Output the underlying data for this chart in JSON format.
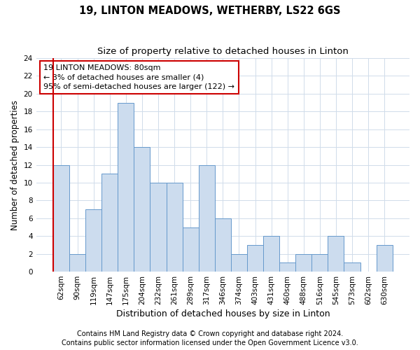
{
  "title1": "19, LINTON MEADOWS, WETHERBY, LS22 6GS",
  "title2": "Size of property relative to detached houses in Linton",
  "xlabel": "Distribution of detached houses by size in Linton",
  "ylabel": "Number of detached properties",
  "categories": [
    "62sqm",
    "90sqm",
    "119sqm",
    "147sqm",
    "175sqm",
    "204sqm",
    "232sqm",
    "261sqm",
    "289sqm",
    "317sqm",
    "346sqm",
    "374sqm",
    "403sqm",
    "431sqm",
    "460sqm",
    "488sqm",
    "516sqm",
    "545sqm",
    "573sqm",
    "602sqm",
    "630sqm"
  ],
  "values": [
    12,
    2,
    7,
    11,
    19,
    14,
    10,
    10,
    5,
    12,
    6,
    2,
    3,
    4,
    1,
    2,
    2,
    4,
    1,
    0,
    3
  ],
  "bar_color": "#ccdcee",
  "bar_edge_color": "#6699cc",
  "annotation_line1": "19 LINTON MEADOWS: 80sqm",
  "annotation_line2": "← 3% of detached houses are smaller (4)",
  "annotation_line3": "95% of semi-detached houses are larger (122) →",
  "annotation_box_color": "#ffffff",
  "annotation_box_edge_color": "#cc0000",
  "vline_color": "#cc0000",
  "ylim": [
    0,
    24
  ],
  "yticks": [
    0,
    2,
    4,
    6,
    8,
    10,
    12,
    14,
    16,
    18,
    20,
    22,
    24
  ],
  "footer1": "Contains HM Land Registry data © Crown copyright and database right 2024.",
  "footer2": "Contains public sector information licensed under the Open Government Licence v3.0.",
  "bg_color": "#ffffff",
  "grid_color": "#d0dcea",
  "title1_fontsize": 10.5,
  "title2_fontsize": 9.5,
  "xlabel_fontsize": 9,
  "ylabel_fontsize": 8.5,
  "tick_fontsize": 7.5,
  "annot_fontsize": 8,
  "footer_fontsize": 7
}
